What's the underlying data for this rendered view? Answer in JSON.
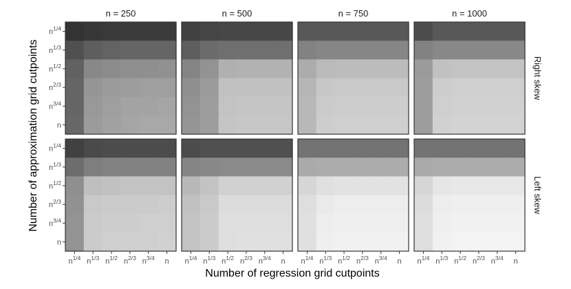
{
  "chart_data": {
    "type": "heatmap",
    "xlabel": "Number of regression grid cutpoints",
    "ylabel": "Number of approximation grid cutpoints",
    "columns": [
      "n = 250",
      "n = 500",
      "n = 750",
      "n = 1000"
    ],
    "rows": [
      "Right skew",
      "Left skew"
    ],
    "x_ticks": [
      {
        "base": "n",
        "exp": "1/4"
      },
      {
        "base": "n",
        "exp": "1/3"
      },
      {
        "base": "n",
        "exp": "1/2"
      },
      {
        "base": "n",
        "exp": "2/3"
      },
      {
        "base": "n",
        "exp": "3/4"
      },
      {
        "base": "n",
        "exp": ""
      }
    ],
    "y_ticks": [
      {
        "base": "n",
        "exp": "1/4"
      },
      {
        "base": "n",
        "exp": "1/3"
      },
      {
        "base": "n",
        "exp": "1/2"
      },
      {
        "base": "n",
        "exp": "2/3"
      },
      {
        "base": "n",
        "exp": "3/4"
      },
      {
        "base": "n",
        "exp": ""
      }
    ],
    "color_scale": "grayscale, darker = higher value, lighter = lower value (0–1 relative)",
    "panels": [
      {
        "row": "Right skew",
        "column": "n = 250",
        "values": [
          [
            0.94,
            0.92,
            0.91,
            0.9,
            0.9,
            0.9
          ],
          [
            0.8,
            0.73,
            0.71,
            0.7,
            0.7,
            0.7
          ],
          [
            0.72,
            0.53,
            0.51,
            0.5,
            0.5,
            0.49
          ],
          [
            0.7,
            0.47,
            0.44,
            0.43,
            0.42,
            0.42
          ],
          [
            0.7,
            0.45,
            0.42,
            0.4,
            0.4,
            0.39
          ],
          [
            0.69,
            0.44,
            0.41,
            0.39,
            0.38,
            0.38
          ]
        ]
      },
      {
        "row": "Right skew",
        "column": "n = 500",
        "values": [
          [
            0.87,
            0.85,
            0.84,
            0.84,
            0.84,
            0.84
          ],
          [
            0.73,
            0.67,
            0.65,
            0.65,
            0.65,
            0.65
          ],
          [
            0.55,
            0.48,
            0.34,
            0.33,
            0.33,
            0.33
          ],
          [
            0.5,
            0.44,
            0.26,
            0.26,
            0.26,
            0.26
          ],
          [
            0.48,
            0.43,
            0.25,
            0.24,
            0.24,
            0.24
          ],
          [
            0.47,
            0.43,
            0.24,
            0.23,
            0.23,
            0.23
          ]
        ]
      },
      {
        "row": "Right skew",
        "column": "n = 750",
        "values": [
          [
            0.76,
            0.76,
            0.76,
            0.76,
            0.76,
            0.76
          ],
          [
            0.56,
            0.54,
            0.54,
            0.54,
            0.54,
            0.54
          ],
          [
            0.36,
            0.29,
            0.28,
            0.28,
            0.28,
            0.28
          ],
          [
            0.31,
            0.23,
            0.22,
            0.22,
            0.22,
            0.22
          ],
          [
            0.3,
            0.21,
            0.2,
            0.2,
            0.2,
            0.2
          ],
          [
            0.3,
            0.2,
            0.19,
            0.19,
            0.19,
            0.19
          ]
        ]
      },
      {
        "row": "Right skew",
        "column": "n = 1000",
        "values": [
          [
            0.82,
            0.76,
            0.76,
            0.76,
            0.76,
            0.76
          ],
          [
            0.56,
            0.53,
            0.53,
            0.53,
            0.53,
            0.53
          ],
          [
            0.44,
            0.26,
            0.25,
            0.25,
            0.25,
            0.25
          ],
          [
            0.43,
            0.2,
            0.19,
            0.19,
            0.19,
            0.19
          ],
          [
            0.43,
            0.19,
            0.18,
            0.18,
            0.18,
            0.18
          ],
          [
            0.43,
            0.18,
            0.17,
            0.17,
            0.17,
            0.17
          ]
        ]
      },
      {
        "row": "Left skew",
        "column": "n = 250",
        "values": [
          [
            0.87,
            0.83,
            0.82,
            0.82,
            0.82,
            0.82
          ],
          [
            0.66,
            0.58,
            0.56,
            0.56,
            0.56,
            0.56
          ],
          [
            0.5,
            0.27,
            0.26,
            0.25,
            0.25,
            0.25
          ],
          [
            0.49,
            0.22,
            0.21,
            0.21,
            0.21,
            0.2
          ],
          [
            0.48,
            0.21,
            0.2,
            0.2,
            0.19,
            0.19
          ],
          [
            0.48,
            0.21,
            0.19,
            0.19,
            0.19,
            0.18
          ]
        ]
      },
      {
        "row": "Left skew",
        "column": "n = 500",
        "values": [
          [
            0.82,
            0.8,
            0.8,
            0.8,
            0.8,
            0.8
          ],
          [
            0.55,
            0.53,
            0.52,
            0.52,
            0.52,
            0.52
          ],
          [
            0.3,
            0.25,
            0.18,
            0.18,
            0.18,
            0.18
          ],
          [
            0.26,
            0.22,
            0.13,
            0.13,
            0.13,
            0.13
          ],
          [
            0.25,
            0.21,
            0.12,
            0.12,
            0.12,
            0.12
          ],
          [
            0.25,
            0.21,
            0.12,
            0.11,
            0.11,
            0.11
          ]
        ]
      },
      {
        "row": "Left skew",
        "column": "n = 750",
        "values": [
          [
            0.63,
            0.63,
            0.63,
            0.63,
            0.63,
            0.63
          ],
          [
            0.37,
            0.36,
            0.36,
            0.36,
            0.36,
            0.36
          ],
          [
            0.16,
            0.11,
            0.1,
            0.1,
            0.1,
            0.1
          ],
          [
            0.12,
            0.06,
            0.05,
            0.05,
            0.05,
            0.05
          ],
          [
            0.11,
            0.05,
            0.04,
            0.04,
            0.04,
            0.04
          ],
          [
            0.11,
            0.04,
            0.03,
            0.03,
            0.03,
            0.03
          ]
        ]
      },
      {
        "row": "Left skew",
        "column": "n = 1000",
        "values": [
          [
            0.63,
            0.63,
            0.63,
            0.63,
            0.63,
            0.63
          ],
          [
            0.37,
            0.36,
            0.36,
            0.36,
            0.36,
            0.36
          ],
          [
            0.16,
            0.08,
            0.07,
            0.07,
            0.07,
            0.07
          ],
          [
            0.13,
            0.05,
            0.04,
            0.04,
            0.04,
            0.04
          ],
          [
            0.12,
            0.04,
            0.03,
            0.03,
            0.03,
            0.03
          ],
          [
            0.12,
            0.03,
            0.02,
            0.02,
            0.02,
            0.02
          ]
        ]
      }
    ],
    "colors": {
      "panel_border": "#333333",
      "strip_text": "#1a1a1a",
      "axis_text": "#4d4d4d"
    }
  }
}
